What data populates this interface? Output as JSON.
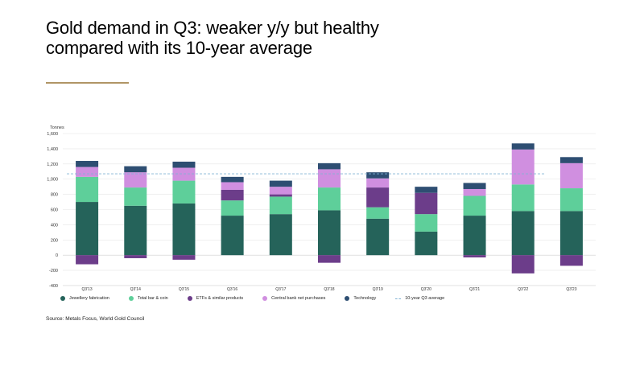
{
  "title": "Gold demand in Q3: weaker y/y but healthy compared with its 10-year average",
  "source": "Source: Metals Focus, World Gold Council",
  "colors": {
    "jewellery": "#25635a",
    "bar_coin": "#5ecf9a",
    "etfs": "#6c3d8a",
    "central_bank": "#d08fe0",
    "technology": "#2e4e72",
    "average": "#7fb1d3",
    "title_rule": "#b09565"
  },
  "chart_data": {
    "type": "bar",
    "stacked": true,
    "ylabel": "Tonnes",
    "ylim": [
      -400,
      1600
    ],
    "yticks": [
      -400,
      -200,
      0,
      200,
      400,
      600,
      800,
      1000,
      1200,
      1400,
      1600
    ],
    "ytick_labels": [
      "-400",
      "-200",
      "0",
      "200",
      "400",
      "600",
      "800",
      "1,000",
      "1,200",
      "1,400",
      "1,600"
    ],
    "grid": true,
    "legend_position": "bottom",
    "categories": [
      "Q3'13",
      "Q3'14",
      "Q3'15",
      "Q3'16",
      "Q3'17",
      "Q3'18",
      "Q3'19",
      "Q3'20",
      "Q3'21",
      "Q3'22",
      "Q3'23"
    ],
    "series": [
      {
        "name": "Jewellery fabrication",
        "color_key": "jewellery",
        "values": [
          700,
          650,
          680,
          520,
          540,
          590,
          480,
          310,
          520,
          580,
          580
        ]
      },
      {
        "name": "Total bar & coin",
        "color_key": "bar_coin",
        "values": [
          330,
          240,
          300,
          200,
          230,
          300,
          150,
          230,
          260,
          350,
          300
        ]
      },
      {
        "name": "ETFs & similar products",
        "color_key": "etfs",
        "values": [
          -120,
          -40,
          -60,
          140,
          30,
          -100,
          260,
          280,
          -30,
          -240,
          -140
        ]
      },
      {
        "name": "Central bank net purchases",
        "color_key": "central_bank",
        "values": [
          130,
          200,
          170,
          100,
          100,
          240,
          120,
          0,
          90,
          460,
          330
        ]
      },
      {
        "name": "Technology",
        "color_key": "technology",
        "values": [
          80,
          80,
          80,
          70,
          80,
          80,
          80,
          80,
          80,
          80,
          80
        ]
      }
    ],
    "reference_line": {
      "name": "10-year Q3 average",
      "value": 1070,
      "style": "dashed",
      "color_key": "average"
    }
  }
}
